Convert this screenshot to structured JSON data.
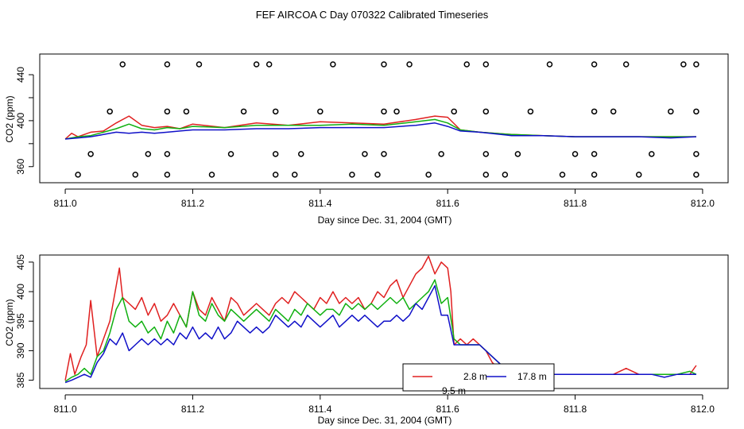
{
  "title": "FEF AIRCOA C  Day 070322  Calibrated Timeseries",
  "colors": {
    "red": "#e02020",
    "green": "#10b010",
    "blue": "#1010c8",
    "axis": "#000000"
  },
  "chart_data": [
    {
      "type": "line",
      "panel": "top",
      "xlabel": "Day since Dec. 31, 2004 (GMT)",
      "ylabel": "CO2 (ppm)",
      "xlim": [
        810.96,
        812.04
      ],
      "ylim": [
        346,
        458
      ],
      "xticks": [
        "811.0",
        "811.2",
        "811.4",
        "811.6",
        "811.8",
        "812.0"
      ],
      "yticks": [
        "360",
        "380",
        "400",
        "420",
        "440"
      ],
      "ytick_labels_shown": [
        "360",
        "",
        "400",
        "",
        "440"
      ],
      "grid": false,
      "series": [
        {
          "name": "2.8 m",
          "color": "red",
          "x": [
            811.0,
            811.01,
            811.02,
            811.04,
            811.06,
            811.08,
            811.1,
            811.12,
            811.14,
            811.16,
            811.18,
            811.2,
            811.25,
            811.3,
            811.35,
            811.4,
            811.45,
            811.5,
            811.55,
            811.58,
            811.6,
            811.62,
            811.65,
            811.7,
            811.75,
            811.8,
            811.85,
            811.9,
            811.95,
            811.99
          ],
          "values": [
            384,
            389,
            386,
            390,
            391,
            398,
            404,
            396,
            394,
            395,
            393,
            397,
            394,
            398,
            396,
            399,
            398,
            397,
            401,
            404,
            403,
            392,
            390,
            388,
            387,
            386,
            386,
            386,
            386,
            386
          ]
        },
        {
          "name": "",
          "color": "green",
          "x": [
            811.0,
            811.02,
            811.04,
            811.06,
            811.08,
            811.1,
            811.12,
            811.14,
            811.16,
            811.18,
            811.2,
            811.25,
            811.3,
            811.35,
            811.4,
            811.45,
            811.5,
            811.55,
            811.58,
            811.6,
            811.62,
            811.65,
            811.7,
            811.75,
            811.8,
            811.85,
            811.9,
            811.95,
            811.99
          ],
          "values": [
            384,
            386,
            387,
            390,
            393,
            397,
            393,
            392,
            394,
            393,
            395,
            394,
            396,
            396,
            396,
            397,
            396,
            399,
            401,
            398,
            392,
            390,
            388,
            387,
            386,
            386,
            386,
            386,
            386
          ]
        },
        {
          "name": "17.8 m",
          "color": "blue",
          "x": [
            811.0,
            811.02,
            811.04,
            811.06,
            811.08,
            811.1,
            811.12,
            811.14,
            811.16,
            811.18,
            811.2,
            811.25,
            811.3,
            811.35,
            811.4,
            811.45,
            811.5,
            811.55,
            811.58,
            811.6,
            811.62,
            811.65,
            811.7,
            811.75,
            811.8,
            811.85,
            811.9,
            811.95,
            811.99
          ],
          "values": [
            384,
            385,
            386,
            388,
            390,
            389,
            390,
            389,
            390,
            391,
            392,
            392,
            393,
            393,
            394,
            394,
            394,
            396,
            398,
            395,
            391,
            390,
            387,
            387,
            386,
            386,
            386,
            385,
            386
          ]
        }
      ],
      "outlier_points": {
        "marker": "open-circle",
        "x": [
          811.09,
          811.16,
          811.21,
          811.3,
          811.32,
          811.42,
          811.5,
          811.54,
          811.63,
          811.66,
          811.76,
          811.83,
          811.88,
          811.97,
          811.99,
          811.07,
          811.16,
          811.19,
          811.28,
          811.33,
          811.4,
          811.5,
          811.52,
          811.61,
          811.66,
          811.73,
          811.83,
          811.86,
          811.95,
          811.99,
          811.04,
          811.13,
          811.16,
          811.26,
          811.33,
          811.37,
          811.47,
          811.5,
          811.59,
          811.66,
          811.71,
          811.8,
          811.83,
          811.92,
          811.99,
          811.02,
          811.11,
          811.16,
          811.23,
          811.33,
          811.36,
          811.45,
          811.49,
          811.57,
          811.66,
          811.69,
          811.78,
          811.83,
          811.9,
          811.99
        ],
        "values": [
          449,
          449,
          449,
          449,
          449,
          449,
          449,
          449,
          449,
          449,
          449,
          449,
          449,
          449,
          449,
          408,
          408,
          408,
          408,
          408,
          408,
          408,
          408,
          408,
          408,
          408,
          408,
          408,
          408,
          408,
          371,
          371,
          371,
          371,
          371,
          371,
          371,
          371,
          371,
          371,
          371,
          371,
          371,
          371,
          371,
          353,
          353,
          353,
          353,
          353,
          353,
          353,
          353,
          353,
          353,
          353,
          353,
          353,
          353,
          353
        ]
      }
    },
    {
      "type": "line",
      "panel": "bottom",
      "xlabel": "Day since Dec. 31, 2004 (GMT)",
      "ylabel": "CO2 (ppm)",
      "xlim": [
        810.96,
        812.04
      ],
      "ylim": [
        383.6,
        406.2
      ],
      "xticks": [
        "811.0",
        "811.2",
        "811.4",
        "811.6",
        "811.8",
        "812.0"
      ],
      "yticks": [
        "385",
        "390",
        "395",
        "400",
        "405"
      ],
      "grid": false,
      "legend": {
        "position": "bottom-right",
        "entries": [
          "2.8 m",
          "17.8 m",
          "9.5 m"
        ]
      },
      "series": [
        {
          "name": "2.8 m",
          "color": "red",
          "x": [
            811.0,
            811.008,
            811.015,
            811.025,
            811.033,
            811.04,
            811.05,
            811.06,
            811.07,
            811.08,
            811.085,
            811.09,
            811.1,
            811.11,
            811.12,
            811.13,
            811.14,
            811.15,
            811.16,
            811.17,
            811.18,
            811.19,
            811.2,
            811.21,
            811.22,
            811.23,
            811.24,
            811.25,
            811.26,
            811.27,
            811.28,
            811.29,
            811.3,
            811.31,
            811.32,
            811.33,
            811.34,
            811.35,
            811.36,
            811.37,
            811.38,
            811.39,
            811.4,
            811.41,
            811.42,
            811.43,
            811.44,
            811.45,
            811.46,
            811.47,
            811.48,
            811.49,
            811.5,
            811.51,
            811.52,
            811.53,
            811.54,
            811.55,
            811.56,
            811.57,
            811.58,
            811.59,
            811.6,
            811.605,
            811.61,
            811.62,
            811.63,
            811.64,
            811.65,
            811.66,
            811.67,
            811.68,
            811.69,
            811.7,
            811.72,
            811.74,
            811.76,
            811.78,
            811.8,
            811.82,
            811.84,
            811.86,
            811.88,
            811.9,
            811.92,
            811.94,
            811.96,
            811.98,
            811.99
          ],
          "values": [
            385,
            389.5,
            386,
            389,
            391,
            398.5,
            389,
            392,
            395,
            401,
            404,
            399,
            398,
            397,
            399,
            396,
            398,
            395,
            396,
            398,
            396,
            394,
            400,
            397,
            396,
            399,
            397,
            395,
            399,
            398,
            396,
            397,
            398,
            397,
            396,
            398,
            399,
            398,
            400,
            399,
            398,
            397,
            399,
            398,
            400,
            398,
            399,
            398,
            399,
            397,
            398,
            400,
            399,
            401,
            402,
            399,
            401,
            403,
            404,
            406,
            403,
            405,
            404,
            400,
            391,
            392,
            391,
            392,
            391,
            390,
            388,
            387,
            387,
            386,
            387,
            386,
            386,
            386,
            386,
            386,
            386,
            386,
            387,
            386,
            386,
            386,
            386,
            386,
            387.5
          ]
        },
        {
          "name": "9.5 m",
          "color": "green",
          "x": [
            811.0,
            811.01,
            811.02,
            811.03,
            811.04,
            811.05,
            811.06,
            811.07,
            811.08,
            811.09,
            811.1,
            811.11,
            811.12,
            811.13,
            811.14,
            811.15,
            811.16,
            811.17,
            811.18,
            811.19,
            811.2,
            811.21,
            811.22,
            811.23,
            811.24,
            811.25,
            811.26,
            811.27,
            811.28,
            811.29,
            811.3,
            811.31,
            811.32,
            811.33,
            811.34,
            811.35,
            811.36,
            811.37,
            811.38,
            811.39,
            811.4,
            811.41,
            811.42,
            811.43,
            811.44,
            811.45,
            811.46,
            811.47,
            811.48,
            811.49,
            811.5,
            811.51,
            811.52,
            811.53,
            811.54,
            811.55,
            811.56,
            811.57,
            811.58,
            811.59,
            811.6,
            811.61,
            811.62,
            811.63,
            811.64,
            811.65,
            811.66,
            811.67,
            811.68,
            811.69,
            811.7,
            811.72,
            811.74,
            811.76,
            811.78,
            811.8,
            811.82,
            811.84,
            811.86,
            811.88,
            811.9,
            811.92,
            811.94,
            811.96,
            811.98,
            811.99
          ],
          "values": [
            384.8,
            385.5,
            386,
            387,
            386,
            389,
            390,
            393,
            397,
            399,
            395,
            394,
            395,
            393,
            394,
            392,
            395,
            393,
            396,
            394,
            400,
            396,
            395,
            398,
            396,
            395,
            397,
            396,
            395,
            396,
            397,
            396,
            395,
            397,
            396,
            395,
            397,
            396,
            398,
            397,
            396,
            397,
            397,
            396,
            398,
            397,
            398,
            397,
            398,
            397,
            398,
            399,
            398,
            399,
            397,
            398,
            399,
            400,
            402,
            398,
            399,
            392,
            391,
            391,
            391,
            391,
            390,
            389,
            388,
            387,
            387,
            386,
            386,
            386,
            386,
            386,
            386,
            386,
            386,
            386,
            386,
            386,
            386,
            386,
            386.5,
            386
          ]
        },
        {
          "name": "17.8 m",
          "color": "blue",
          "x": [
            811.0,
            811.01,
            811.02,
            811.03,
            811.04,
            811.05,
            811.06,
            811.07,
            811.08,
            811.09,
            811.1,
            811.11,
            811.12,
            811.13,
            811.14,
            811.15,
            811.16,
            811.17,
            811.18,
            811.19,
            811.2,
            811.21,
            811.22,
            811.23,
            811.24,
            811.25,
            811.26,
            811.27,
            811.28,
            811.29,
            811.3,
            811.31,
            811.32,
            811.33,
            811.34,
            811.35,
            811.36,
            811.37,
            811.38,
            811.39,
            811.4,
            811.41,
            811.42,
            811.43,
            811.44,
            811.45,
            811.46,
            811.47,
            811.48,
            811.49,
            811.5,
            811.51,
            811.52,
            811.53,
            811.54,
            811.55,
            811.56,
            811.57,
            811.58,
            811.59,
            811.6,
            811.61,
            811.62,
            811.63,
            811.64,
            811.65,
            811.66,
            811.67,
            811.68,
            811.69,
            811.7,
            811.72,
            811.74,
            811.76,
            811.78,
            811.8,
            811.82,
            811.84,
            811.86,
            811.88,
            811.9,
            811.92,
            811.94,
            811.96,
            811.98,
            811.99
          ],
          "values": [
            384.6,
            385,
            385.5,
            386,
            385.5,
            388,
            389.5,
            392,
            391,
            393,
            390,
            391,
            392,
            391,
            392,
            391,
            392,
            391,
            393,
            392,
            394,
            392,
            393,
            392,
            394,
            392,
            393,
            395,
            394,
            393,
            394,
            393,
            394,
            396,
            395,
            394,
            395,
            394,
            396,
            395,
            394,
            395,
            396,
            394,
            395,
            396,
            395,
            396,
            395,
            394,
            395,
            395,
            396,
            395,
            396,
            398,
            397,
            399,
            401,
            396,
            396,
            391,
            391,
            391,
            391,
            391,
            390,
            389,
            388,
            387,
            387,
            386,
            386,
            386,
            386,
            386,
            386,
            386,
            386,
            386,
            386,
            386,
            385.5,
            386,
            386,
            386
          ]
        }
      ]
    }
  ]
}
